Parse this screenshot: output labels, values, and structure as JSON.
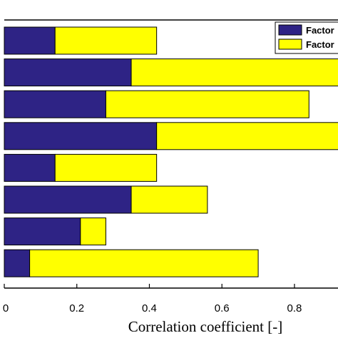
{
  "chart_data": {
    "type": "bar",
    "orientation": "horizontal",
    "stacked": true,
    "xlabel": "Correlation coefficient [-]",
    "xlim": [
      0,
      0.92
    ],
    "xticks": [
      0,
      0.2,
      0.4,
      0.6,
      0.8
    ],
    "xtick_labels": [
      "0",
      "0.2",
      "0.4",
      "0.6",
      "0.8"
    ],
    "grid": false,
    "legend_position": "top-right",
    "series": [
      {
        "name": "Factor",
        "color": "#2e2385",
        "values": [
          0.14,
          0.35,
          0.28,
          0.42,
          0.14,
          0.35,
          0.21,
          0.07
        ]
      },
      {
        "name": "Factor",
        "color": "#ffff00",
        "values": [
          0.28,
          0.58,
          0.56,
          0.51,
          0.28,
          0.21,
          0.07,
          0.63
        ]
      }
    ],
    "legend_labels": [
      "Factor",
      "Factor"
    ]
  }
}
